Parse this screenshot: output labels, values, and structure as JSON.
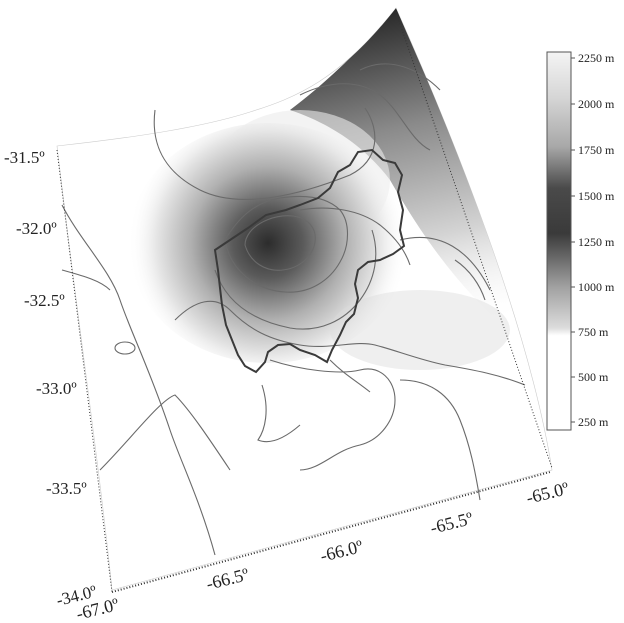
{
  "map": {
    "latitude_labels": [
      "-31.5º",
      "-32.0º",
      "-32.5º",
      "-33.0º",
      "-33.5º",
      "-34.0º"
    ],
    "longitude_labels": [
      "-67.0º",
      "-66.5º",
      "-66.0º",
      "-65.5º",
      "-65.0º"
    ],
    "colorbar": {
      "labels": [
        "2250 m",
        "2000 m",
        "1750 m",
        "1500 m",
        "1250 m",
        "1000 m",
        "750 m",
        "500 m",
        "250 m"
      ],
      "colors": [
        "#f2f2f2",
        "#c8c8c8",
        "#a0a0a0",
        "#5a5a5a",
        "#3a3a3a",
        "#bfbfbf",
        "#ffffff",
        "#ffffff",
        "#ffffff"
      ]
    },
    "elevation_range_m": [
      250,
      2250
    ],
    "colors": {
      "surface_low": "#ffffff",
      "surface_high": "#303030",
      "contour": "#6a6a6a",
      "boundary": "#3a3a3a"
    }
  }
}
